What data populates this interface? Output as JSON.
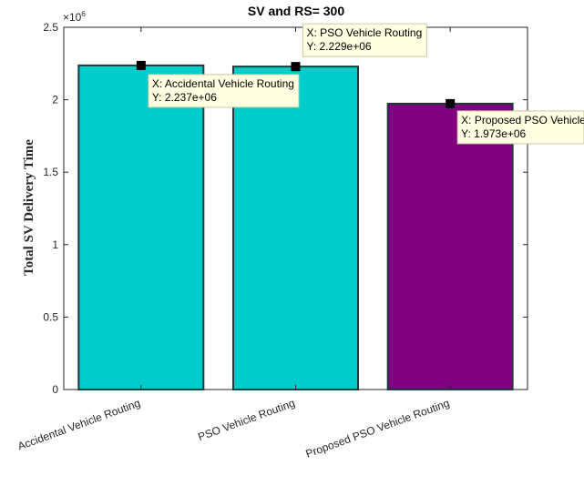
{
  "chart_data": {
    "type": "bar",
    "title": "SV and RS= 300",
    "xlabel": "",
    "ylabel": "Total SV Delivery Time",
    "ylim": [
      0,
      2500000
    ],
    "yticks": [
      0,
      0.5,
      1,
      1.5,
      2,
      2.5
    ],
    "ytick_labels": [
      "0",
      "0.5",
      "1",
      "1.5",
      "2",
      "2.5"
    ],
    "y_exponent_label": "×10",
    "y_exponent_power": "6",
    "categories": [
      "Accidental Vehicle Routing",
      "PSO Vehicle Routing",
      "Proposed PSO Vehicle Routing"
    ],
    "values": [
      2237000,
      2229000,
      1973000
    ],
    "bar_colors": [
      "#00CCCC",
      "#00CCCC",
      "#800080"
    ],
    "grid": false,
    "datatips": [
      {
        "x_line": "X: Accidental Vehicle Routing",
        "y_line": "Y: 2.237e+06"
      },
      {
        "x_line": "X: PSO Vehicle Routing",
        "y_line": "Y: 2.229e+06"
      },
      {
        "x_line": "X: Proposed PSO Vehicle Routing",
        "y_line": "Y: 1.973e+06"
      }
    ]
  }
}
